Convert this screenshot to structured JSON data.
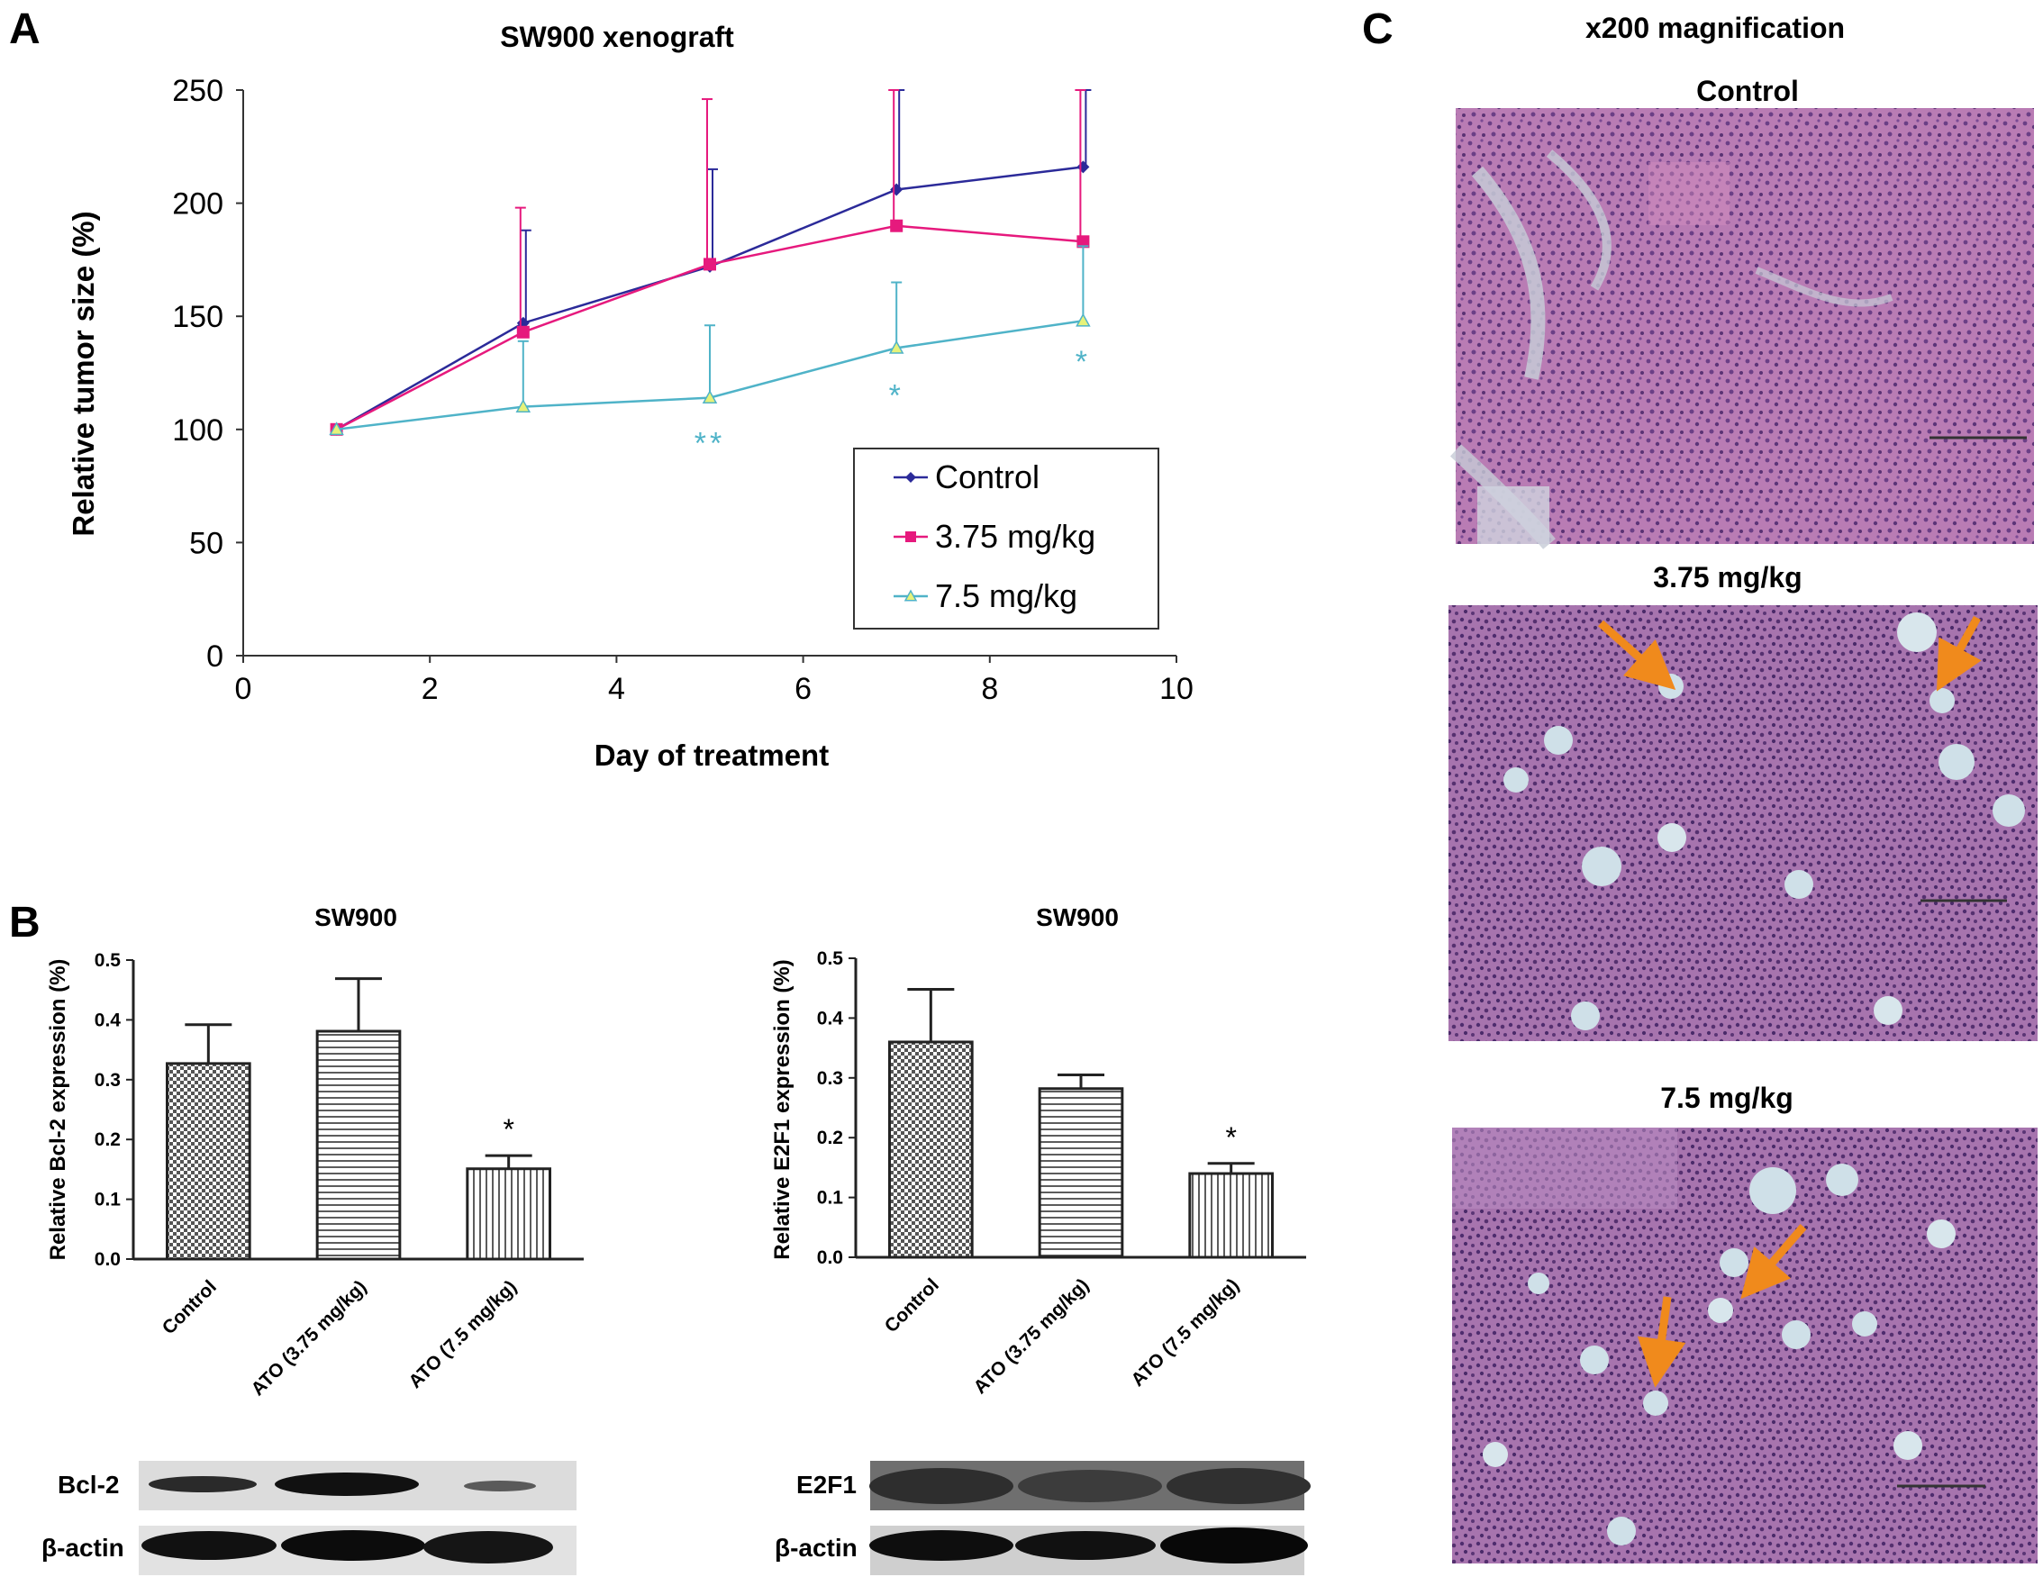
{
  "panels": {
    "a": "A",
    "b": "B",
    "c": "C"
  },
  "chart_data": [
    {
      "type": "line",
      "title": "SW900 xenograft",
      "xlabel": "Day of treatment",
      "ylabel": "Relative tumor size (%)",
      "xlim": [
        0,
        10
      ],
      "ylim": [
        0,
        250
      ],
      "xticks": [
        "0",
        "2",
        "4",
        "6",
        "8",
        "10"
      ],
      "yticks": [
        "0",
        "50",
        "100",
        "150",
        "200",
        "250"
      ],
      "legend_position": "lower-right",
      "series": [
        {
          "name": "Control",
          "color": "#2b2a99",
          "marker": "diamond",
          "x": [
            1,
            3,
            5,
            7,
            9
          ],
          "y": [
            100,
            147,
            172,
            206,
            216
          ],
          "err": [
            0,
            41,
            43,
            44,
            34
          ]
        },
        {
          "name": "3.75 mg/kg",
          "color": "#e6197d",
          "marker": "square",
          "x": [
            1,
            3,
            5,
            7,
            9
          ],
          "y": [
            100,
            143,
            173,
            190,
            183
          ],
          "err": [
            0,
            55,
            73,
            60,
            67
          ]
        },
        {
          "name": "7.5 mg/kg",
          "color": "#4fb3c8",
          "marker": "triangle",
          "x": [
            1,
            3,
            5,
            7,
            9
          ],
          "y": [
            100,
            110,
            114,
            136,
            148
          ],
          "err": [
            0,
            29,
            32,
            29,
            33
          ]
        }
      ],
      "annotations": [
        {
          "x": 5,
          "y": 95,
          "text": "**"
        },
        {
          "x": 7,
          "y": 116,
          "text": "*"
        },
        {
          "x": 9,
          "y": 131,
          "text": "*"
        }
      ]
    },
    {
      "type": "bar",
      "title": "SW900",
      "ylabel": "Relative Bcl-2 expression (%)",
      "ylim": [
        0,
        0.5
      ],
      "yticks": [
        "0.0",
        "0.1",
        "0.2",
        "0.3",
        "0.4",
        "0.5"
      ],
      "categories": [
        "Control",
        "ATO (3.75 mg/kg)",
        "ATO (7.5 mg/kg)"
      ],
      "values": [
        0.327,
        0.381,
        0.151
      ],
      "errors": [
        0.065,
        0.088,
        0.022
      ],
      "annotations": [
        "",
        "",
        "*"
      ]
    },
    {
      "type": "bar",
      "title": "SW900",
      "ylabel": "Relative E2F1 expression (%)",
      "ylim": [
        0,
        0.5
      ],
      "yticks": [
        "0.0",
        "0.1",
        "0.2",
        "0.3",
        "0.4",
        "0.5"
      ],
      "categories": [
        "Control",
        "ATO (3.75 mg/kg)",
        "ATO (7.5 mg/kg)"
      ],
      "values": [
        0.36,
        0.282,
        0.14
      ],
      "errors": [
        0.088,
        0.023,
        0.017
      ],
      "annotations": [
        "",
        "",
        "*"
      ]
    }
  ],
  "blots": {
    "left": {
      "band1": "Bcl-2",
      "band2": "β-actin"
    },
    "right": {
      "band1": "E2F1",
      "band2": "β-actin"
    }
  },
  "histology": {
    "title": "x200 magnification",
    "panels": [
      {
        "label": "Control"
      },
      {
        "label": "3.75 mg/kg"
      },
      {
        "label": "7.5 mg/kg"
      }
    ],
    "arrow_color": "#f08a1c"
  }
}
